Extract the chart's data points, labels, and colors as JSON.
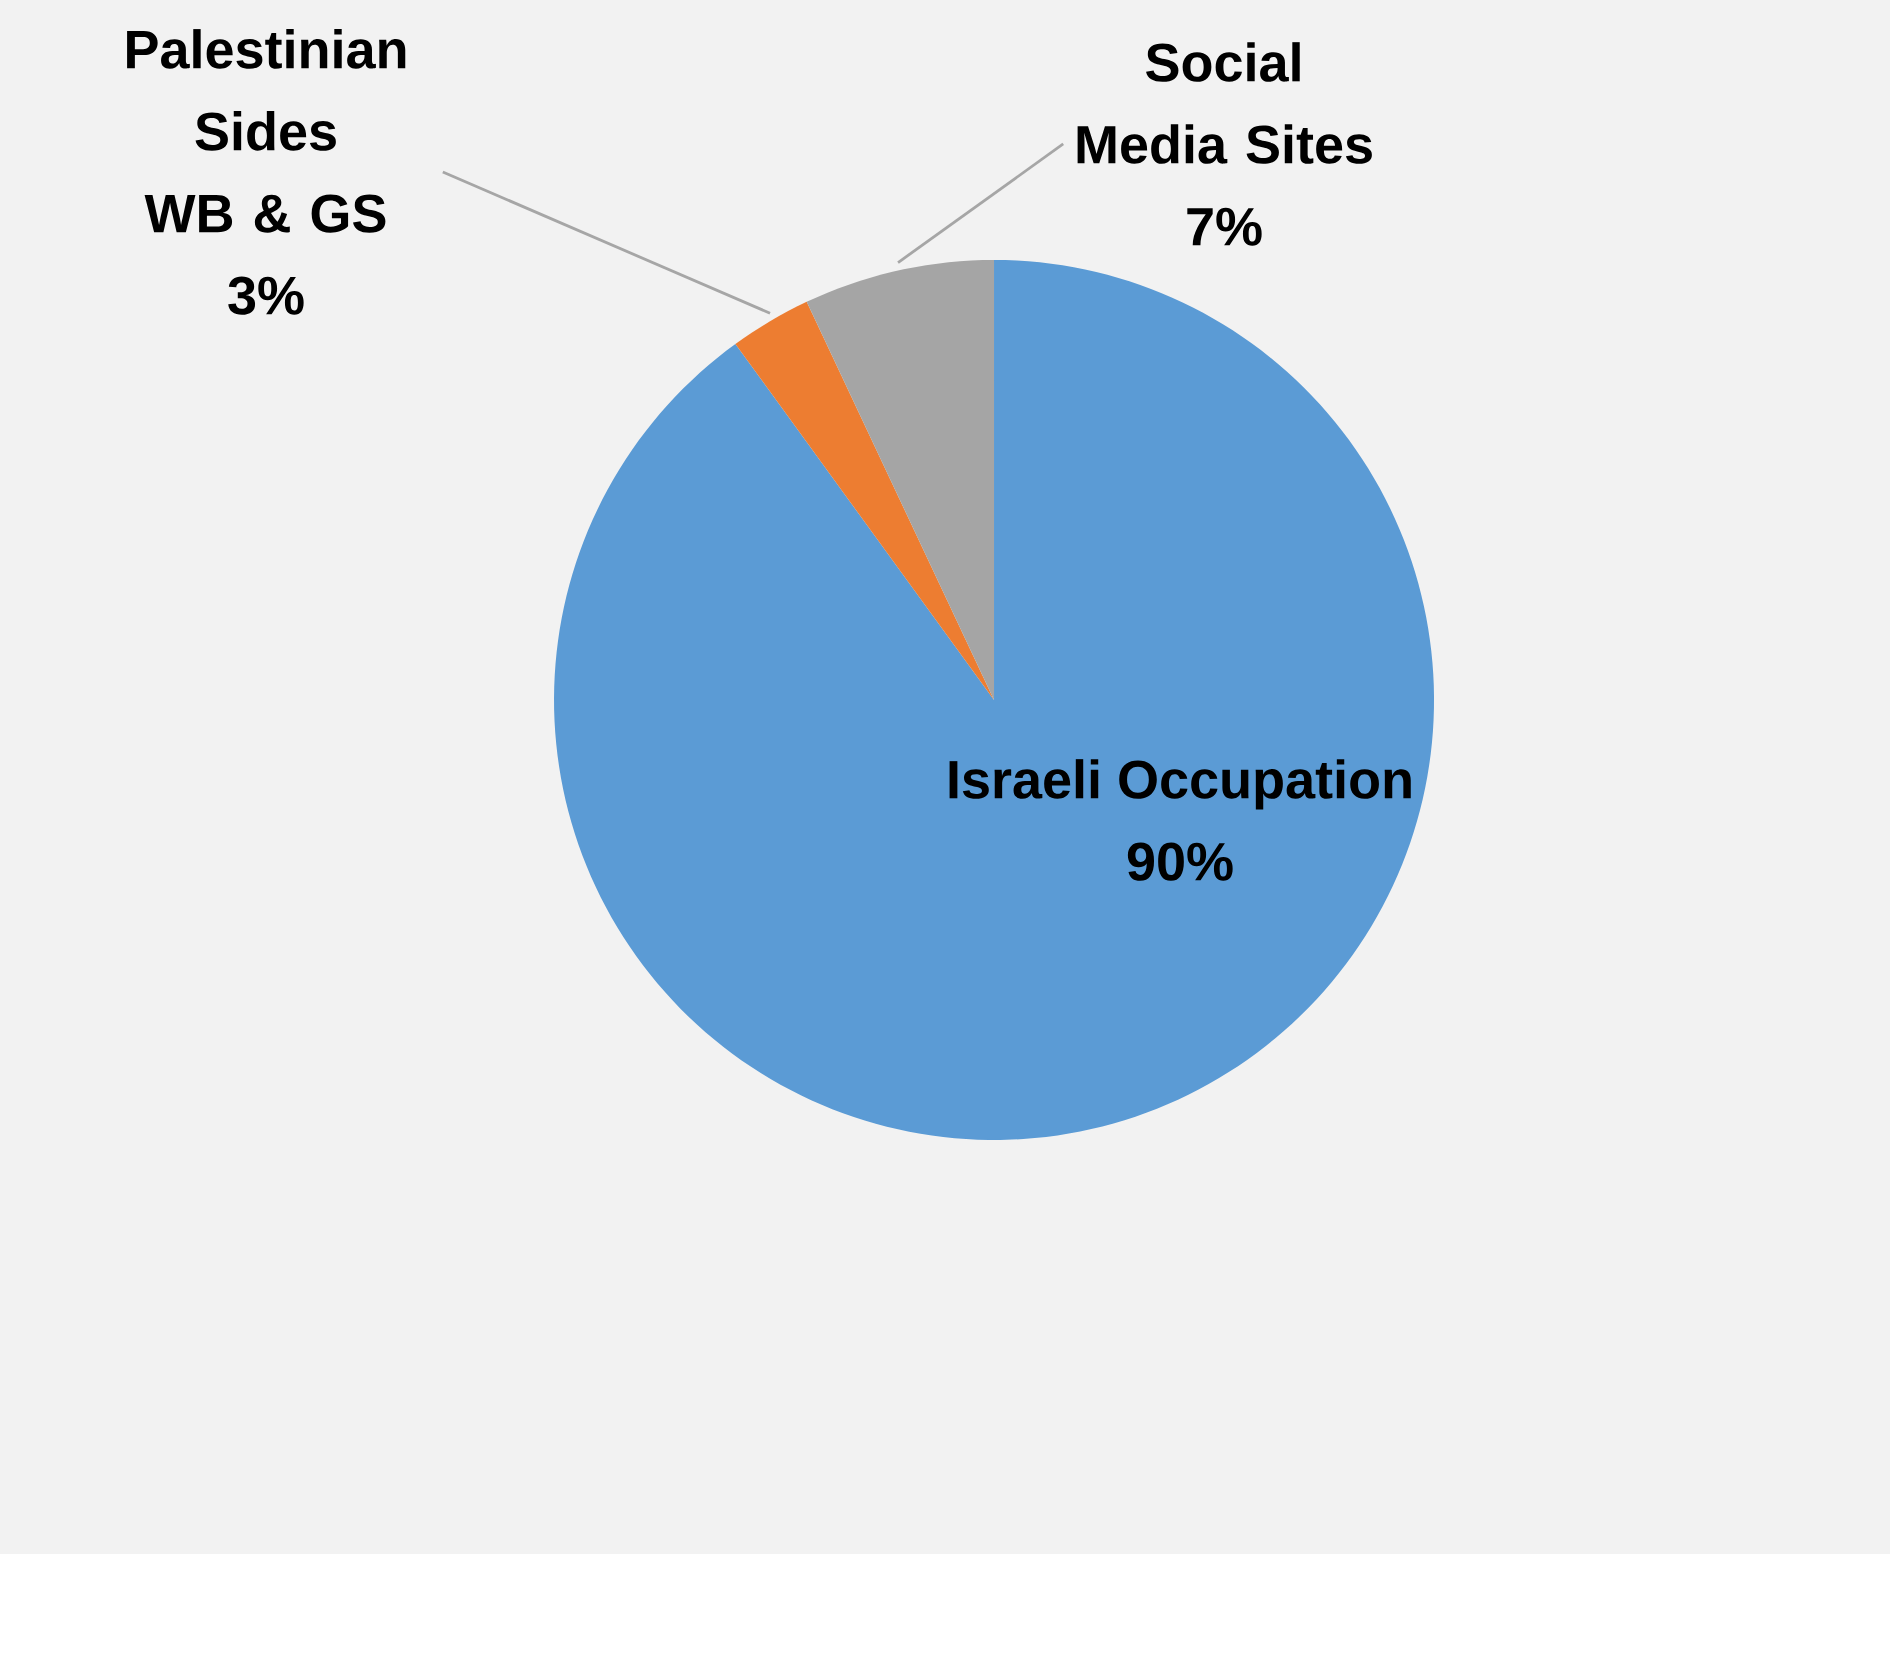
{
  "chart_data": {
    "type": "pie",
    "categories": [
      "Israeli Occupation",
      "Palestinian Sides WB & GS",
      "Social Media Sites"
    ],
    "values": [
      90,
      3,
      7
    ],
    "colors": [
      "#5b9bd5",
      "#ed7d31",
      "#a5a5a5"
    ],
    "value_labels": [
      "90%",
      "3%",
      "7%"
    ]
  }
}
